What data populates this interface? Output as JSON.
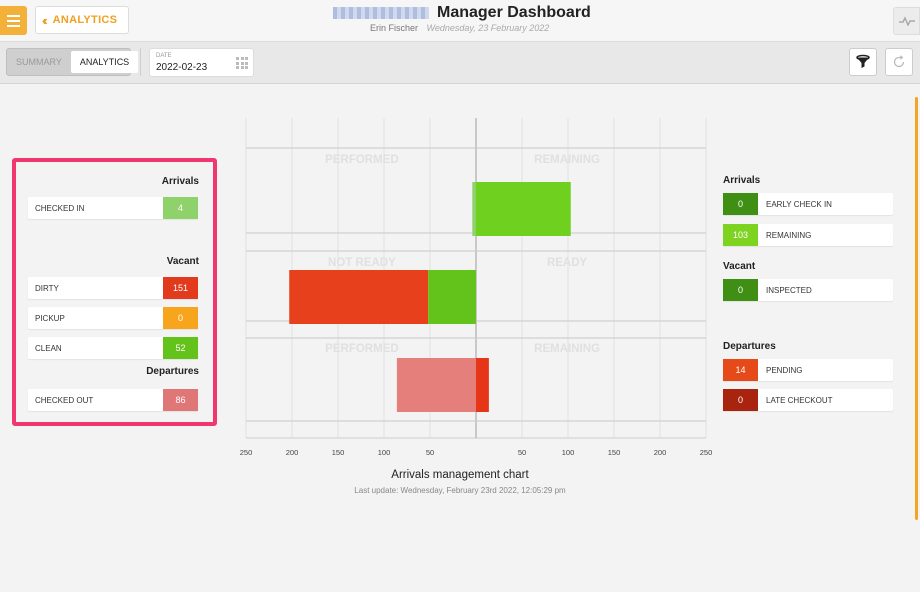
{
  "header": {
    "back_label": "ANALYTICS",
    "title": "Manager Dashboard",
    "user": "Erin Fischer",
    "date": "Wednesday, 23 February 2022"
  },
  "toolbar": {
    "tabs": [
      "SUMMARY",
      "ANALYTICS"
    ],
    "date_label": "DATE",
    "date_value": "2022-02-23"
  },
  "left_panel": {
    "arrivals_title": "Arrivals",
    "checked_in": {
      "label": "CHECKED IN",
      "value": "4",
      "color": "#8fd16a"
    },
    "vacant_title": "Vacant",
    "dirty": {
      "label": "DIRTY",
      "value": "151",
      "color": "#e13a1d"
    },
    "pickup": {
      "label": "PICKUP",
      "value": "0",
      "color": "#f7a51c"
    },
    "clean": {
      "label": "CLEAN",
      "value": "52",
      "color": "#64c31a"
    },
    "departures_title": "Departures",
    "checked_out": {
      "label": "CHECKED OUT",
      "value": "86",
      "color": "#e07777"
    }
  },
  "chart_data": {
    "type": "bar",
    "orientation": "horizontal-diverging",
    "title": "Arrivals management chart",
    "subtitle": "Last update: Wednesday, February 23rd 2022, 12:05:29 pm",
    "xlim": [
      -250,
      250
    ],
    "ticks": [
      "250",
      "200",
      "150",
      "100",
      "50",
      "",
      "50",
      "100",
      "150",
      "200",
      "250"
    ],
    "rows": [
      {
        "left_label": "PERFORMED",
        "right_label": "REMAINING",
        "bars": [
          {
            "from": -4,
            "to": 0,
            "color": "#8fd16a"
          },
          {
            "from": 0,
            "to": 103,
            "color": "#6fd020"
          }
        ]
      },
      {
        "left_label": "NOT READY",
        "right_label": "READY",
        "bars": [
          {
            "from": -203,
            "to": -52,
            "color": "#e6401c"
          },
          {
            "from": -52,
            "to": 0,
            "color": "#64c31a"
          }
        ]
      },
      {
        "left_label": "PERFORMED",
        "right_label": "REMAINING",
        "bars": [
          {
            "from": -86,
            "to": 0,
            "color": "#e47f7c"
          },
          {
            "from": 0,
            "to": 14,
            "color": "#e63618"
          }
        ]
      }
    ]
  },
  "right_panel": {
    "arrivals_title": "Arrivals",
    "early_check_in": {
      "label": "EARLY CHECK IN",
      "value": "0",
      "color": "#3f8f14"
    },
    "remaining": {
      "label": "REMAINING",
      "value": "103",
      "color": "#7ed321"
    },
    "vacant_title": "Vacant",
    "inspected": {
      "label": "INSPECTED",
      "value": "0",
      "color": "#3f8f14"
    },
    "departures_title": "Departures",
    "pending": {
      "label": "PENDING",
      "value": "14",
      "color": "#e64a19"
    },
    "late_checkout": {
      "label": "LATE CHECKOUT",
      "value": "0",
      "color": "#a8240f"
    }
  }
}
